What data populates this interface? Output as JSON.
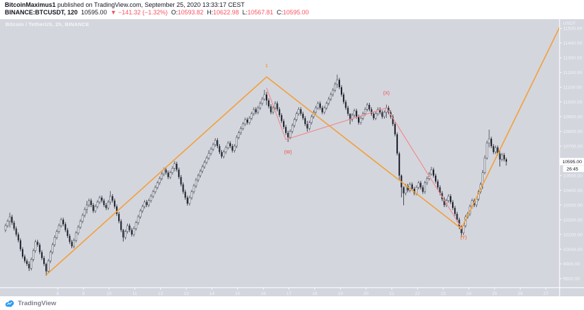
{
  "header": {
    "author": "BitcoinMaximus1",
    "published_suffix": " published on TradingView.com, September 25, 2020 13:33:17 CEST",
    "symbol": "BINANCE:BTCUSDT, 120",
    "last": "10595.00",
    "change": "▼ −141.32 (−1.32%)",
    "o_label": "O:",
    "o_value": "10593.82",
    "h_label": "H:",
    "h_value": "10622.98",
    "l_label": "L:",
    "l_value": "10567.81",
    "c_label": "C:",
    "c_value": "10595.00"
  },
  "chart": {
    "watermark": "Bitcoin / TetherUS, 2h, BINANCE",
    "axis_currency": "USDT",
    "price_label": "10595.00",
    "countdown": "26:45",
    "price_ticks": [
      11500,
      11400,
      11300,
      11200,
      11100,
      11000,
      10900,
      10800,
      10700,
      10600,
      10500,
      10400,
      10300,
      10200,
      10100,
      10000,
      9900,
      9800
    ],
    "time_labels": [
      8,
      9,
      10,
      11,
      12,
      13,
      14,
      15,
      16,
      17,
      18,
      19,
      20,
      21,
      22,
      23,
      24,
      25,
      26,
      27
    ]
  },
  "chart_data": {
    "type": "candlestick",
    "symbol": "BINANCE:BTCUSDT",
    "timeframe": "2h",
    "ylim": [
      9750,
      11560
    ],
    "first_open": 10130,
    "wick_default": 14,
    "closes": [
      10160,
      10190,
      10220,
      10180,
      10140,
      10100,
      10060,
      10000,
      9950,
      9920,
      9900,
      9870,
      9930,
      9990,
      10050,
      10030,
      9980,
      9940,
      9900,
      9850,
      9920,
      9980,
      10030,
      10080,
      10120,
      10160,
      10200,
      10170,
      10130,
      10090,
      10050,
      10020,
      10060,
      10110,
      10150,
      10190,
      10230,
      10270,
      10300,
      10330,
      10300,
      10260,
      10290,
      10320,
      10350,
      10330,
      10300,
      10280,
      10320,
      10360,
      10330,
      10290,
      10240,
      10190,
      10130,
      10080,
      10120,
      10160,
      10130,
      10100,
      10140,
      10180,
      10220,
      10260,
      10290,
      10320,
      10300,
      10330,
      10360,
      10390,
      10420,
      10450,
      10480,
      10510,
      10540,
      10520,
      10490,
      10520,
      10550,
      10580,
      10540,
      10490,
      10440,
      10390,
      10350,
      10310,
      10350,
      10390,
      10430,
      10470,
      10500,
      10530,
      10560,
      10590,
      10620,
      10650,
      10680,
      10710,
      10740,
      10700,
      10660,
      10630,
      10660,
      10690,
      10720,
      10700,
      10670,
      10700,
      10760,
      10790,
      10820,
      10850,
      10880,
      10860,
      10890,
      10920,
      10950,
      10930,
      10960,
      10990,
      11020,
      11050,
      11010,
      10970,
      10930,
      10960,
      10990,
      10950,
      10910,
      10870,
      10830,
      10790,
      10760,
      10800,
      10840,
      10880,
      10920,
      10950,
      10920,
      10890,
      10850,
      10820,
      10860,
      10900,
      10930,
      10960,
      10990,
      10960,
      10930,
      10960,
      10990,
      11020,
      11050,
      11080,
      11120,
      11150,
      11100,
      11050,
      11000,
      10960,
      10920,
      10880,
      10910,
      10940,
      10900,
      10860,
      10890,
      10920,
      10950,
      10980,
      10950,
      10920,
      10890,
      10920,
      10950,
      10930,
      10900,
      10930,
      10960,
      10930,
      10900,
      10850,
      10780,
      10650,
      10500,
      10420,
      10380,
      10430,
      10400,
      10440,
      10410,
      10380,
      10420,
      10450,
      10420,
      10390,
      10450,
      10480,
      10510,
      10540,
      10500,
      10460,
      10420,
      10380,
      10340,
      10300,
      10330,
      10360,
      10320,
      10280,
      10240,
      10200,
      10150,
      10110,
      10160,
      10220,
      10240,
      10290,
      10330,
      10300,
      10340,
      10390,
      10440,
      10520,
      10620,
      10720,
      10750,
      10700,
      10660,
      10690,
      10650,
      10610,
      10640,
      10610,
      10595
    ],
    "wick_overrides": {
      "2": [
        10248,
        10148
      ],
      "11": [
        9918,
        9852
      ],
      "19": [
        9908,
        9820
      ],
      "38": [
        10328,
        10242
      ],
      "49": [
        10395,
        10302
      ],
      "55": [
        10138,
        10052
      ],
      "79": [
        10598,
        10528
      ],
      "95": [
        10672,
        10606
      ],
      "121": [
        11082,
        11008
      ],
      "122": [
        11068,
        10978
      ],
      "132": [
        10805,
        10728
      ],
      "141": [
        10872,
        10798
      ],
      "155": [
        11186,
        11096
      ],
      "161": [
        10922,
        10848
      ],
      "178": [
        10982,
        10892
      ],
      "184": [
        10662,
        10468
      ],
      "185": [
        10508,
        10352
      ],
      "186": [
        10428,
        10298
      ],
      "199": [
        10560,
        10500
      ],
      "213": [
        10162,
        10082
      ],
      "223": [
        10538,
        10408
      ],
      "224": [
        10638,
        10508
      ],
      "225": [
        10738,
        10608
      ],
      "226": [
        10812,
        10692
      ],
      "231": [
        10672,
        10562
      ],
      "234": [
        10622,
        10568
      ]
    },
    "colors": {
      "up": "#ffffff",
      "up_border": "#3e4350",
      "down": "#1d212c"
    },
    "annotations": {
      "orange_line": {
        "color": "#f0a23e",
        "points_bar_price": [
          [
            19,
            9825
          ],
          [
            122,
            11170
          ],
          [
            213,
            10140
          ],
          [
            259,
            11510
          ]
        ]
      },
      "red_line": {
        "color": "#ee8c8c",
        "points_bar_price": [
          [
            122,
            11095
          ],
          [
            131,
            10745
          ],
          [
            178,
            10960
          ],
          [
            213,
            10147
          ]
        ]
      },
      "labels": [
        {
          "text": "1",
          "bar": 122,
          "price": 11235,
          "color": "#f0a23e"
        },
        {
          "text": "(W)",
          "bar": 132,
          "price": 10650,
          "color": "#e87878"
        },
        {
          "text": "(X)",
          "bar": 178,
          "price": 11050,
          "color": "#e87878"
        },
        {
          "text": "(Y)",
          "bar": 214,
          "price": 10070,
          "color": "#ef8350"
        }
      ]
    }
  },
  "footer": {
    "brand": "TradingView"
  }
}
